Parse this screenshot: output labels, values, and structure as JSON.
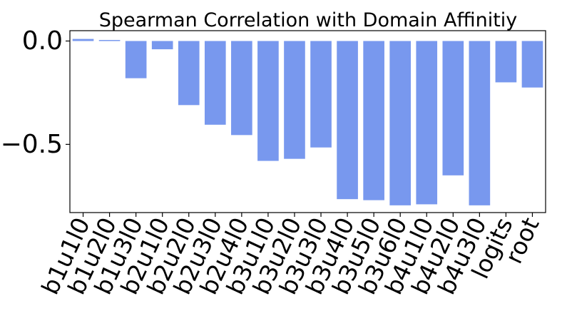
{
  "chart_data": {
    "type": "bar",
    "title": "Spearman Correlation with Domain Affinitiy",
    "xlabel": "",
    "ylabel": "",
    "categories": [
      "b1u1l0",
      "b1u2l0",
      "b1u3l0",
      "b2u1l0",
      "b2u2l0",
      "b2u3l0",
      "b2u4l0",
      "b3u1l0",
      "b3u2l0",
      "b3u3l0",
      "b3u4l0",
      "b3u5l0",
      "b3u6l0",
      "b4u1l0",
      "b4u2l0",
      "b4u3l0",
      "logits",
      "root"
    ],
    "values": [
      0.01,
      0.005,
      -0.18,
      -0.04,
      -0.31,
      -0.405,
      -0.455,
      -0.58,
      -0.57,
      -0.515,
      -0.765,
      -0.77,
      -0.795,
      -0.79,
      -0.65,
      -0.795,
      -0.2,
      -0.225
    ],
    "ylim": [
      -0.83,
      0.05
    ],
    "yticks": [
      0.0,
      -0.5
    ],
    "ytick_labels": [
      "0.0",
      "−0.5"
    ],
    "bar_color": "#7898ee",
    "grid": false,
    "legend": "none"
  }
}
